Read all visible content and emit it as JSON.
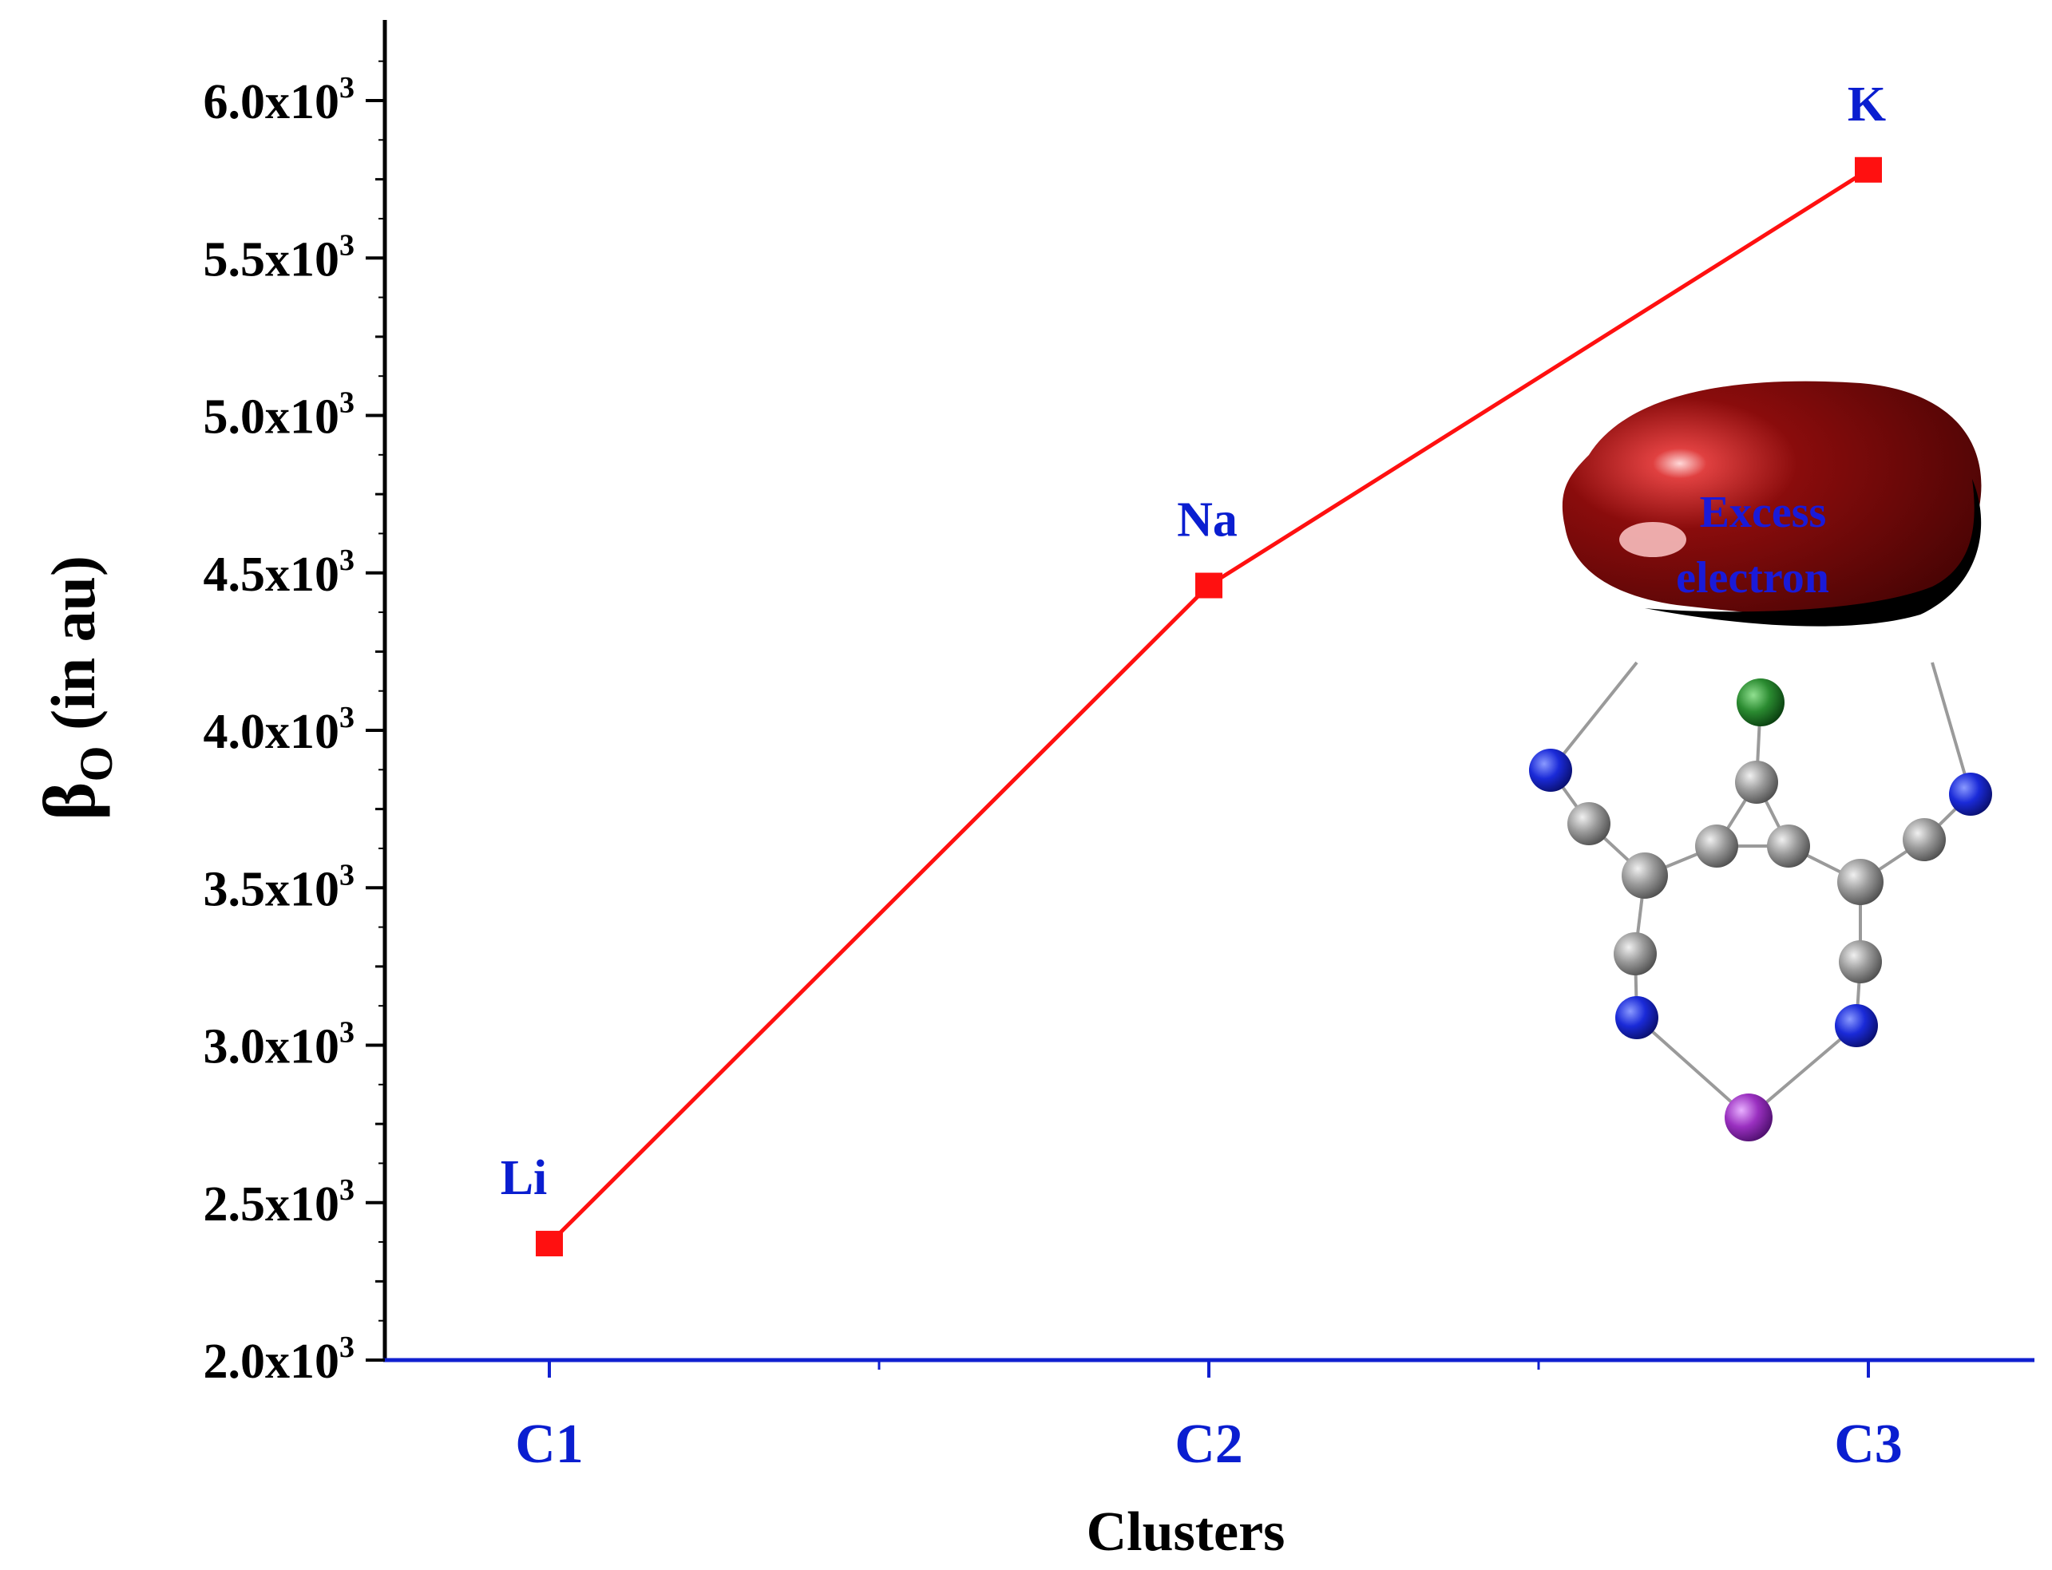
{
  "chart_data": {
    "type": "line",
    "title": "",
    "xlabel": "Clusters",
    "ylabel": {
      "symbol": "β",
      "subscript": "O",
      "rest": " (in au)"
    },
    "categories": [
      "C1",
      "C2",
      "C3"
    ],
    "series": [
      {
        "values": [
          2370,
          4460,
          5780
        ],
        "point_labels": [
          "Li",
          "Na",
          "K"
        ],
        "color": "#ff1010"
      }
    ],
    "ylim": [
      2000,
      6250
    ],
    "y_ticks": [
      {
        "value": 2000,
        "mantissa": "2.0x10",
        "exp": "3"
      },
      {
        "value": 2500,
        "mantissa": "2.5x10",
        "exp": "3"
      },
      {
        "value": 3000,
        "mantissa": "3.0x10",
        "exp": "3"
      },
      {
        "value": 3500,
        "mantissa": "3.5x10",
        "exp": "3"
      },
      {
        "value": 4000,
        "mantissa": "4.0x10",
        "exp": "3"
      },
      {
        "value": 4500,
        "mantissa": "4.5x10",
        "exp": "3"
      },
      {
        "value": 5000,
        "mantissa": "5.0x10",
        "exp": "3"
      },
      {
        "value": 5500,
        "mantissa": "5.5x10",
        "exp": "3"
      },
      {
        "value": 6000,
        "mantissa": "6.0x10",
        "exp": "3"
      }
    ],
    "grid": false,
    "x_axis_color": "#1020d0",
    "y_axis_color": "#000000"
  },
  "inset": {
    "label_line1": "Excess",
    "label_line2": "electron",
    "colors": {
      "lobe": "#7a0a0a",
      "nitrogen": "#1020d0",
      "carbon": "#9a9a9a",
      "alkali": "#9a30c0",
      "oxygen": "#2a8a30"
    }
  }
}
